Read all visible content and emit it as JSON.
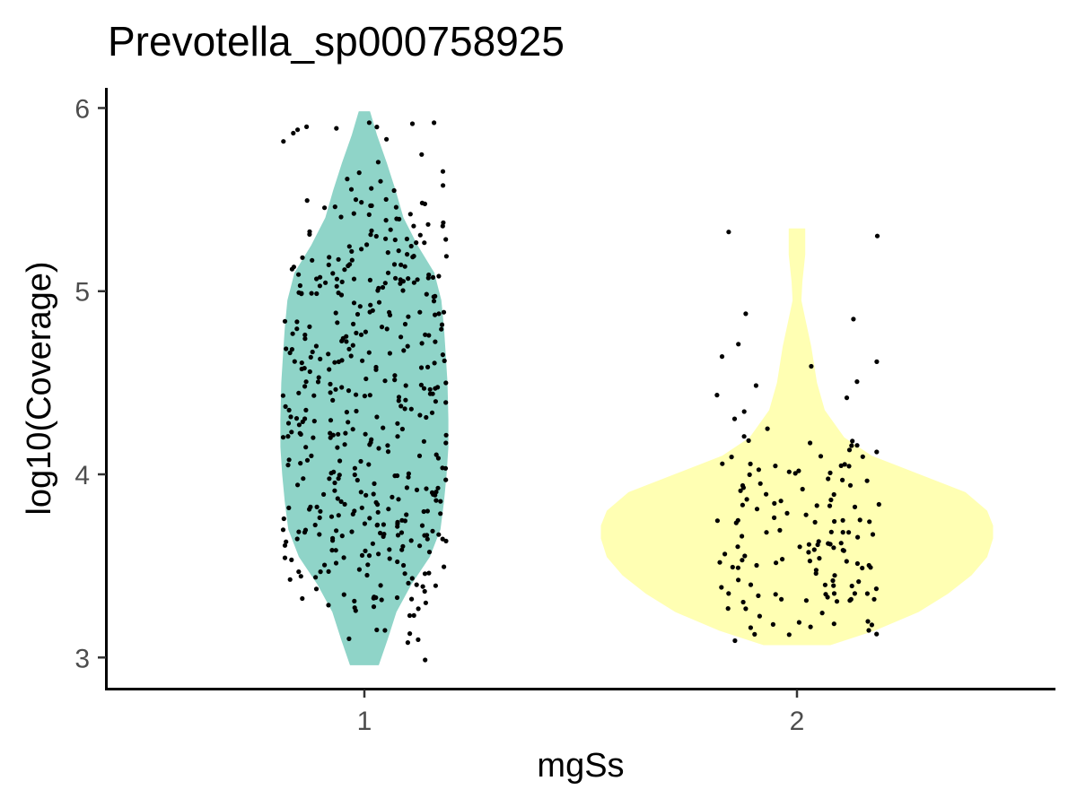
{
  "chart_data": {
    "type": "violin",
    "title": "Prevotella_sp000758925",
    "xlabel": "mgSs",
    "ylabel": "log10(Coverage)",
    "ylim": [
      2.83,
      6.11
    ],
    "yticks": [
      3,
      4,
      5,
      6
    ],
    "categories": [
      "1",
      "2"
    ],
    "grid": false,
    "legend": "none",
    "colors": {
      "1": "#8FD4C8",
      "2": "#FFFFB3",
      "points": "#000000"
    },
    "groups": [
      {
        "name": "1",
        "count": 450,
        "min": 2.96,
        "max": 5.98,
        "density_profile": [
          [
            2.96,
            0.16
          ],
          [
            3.1,
            0.26
          ],
          [
            3.25,
            0.36
          ],
          [
            3.4,
            0.53
          ],
          [
            3.55,
            0.74
          ],
          [
            3.7,
            0.86
          ],
          [
            3.85,
            0.9
          ],
          [
            4.0,
            0.93
          ],
          [
            4.15,
            0.95
          ],
          [
            4.3,
            0.95
          ],
          [
            4.5,
            0.94
          ],
          [
            4.65,
            0.92
          ],
          [
            4.8,
            0.9
          ],
          [
            4.95,
            0.87
          ],
          [
            5.1,
            0.79
          ],
          [
            5.25,
            0.6
          ],
          [
            5.4,
            0.44
          ],
          [
            5.55,
            0.35
          ],
          [
            5.7,
            0.25
          ],
          [
            5.85,
            0.14
          ],
          [
            5.98,
            0.06
          ]
        ]
      },
      {
        "name": "2",
        "count": 150,
        "min": 3.07,
        "max": 5.34,
        "density_profile": [
          [
            3.07,
            0.17
          ],
          [
            3.15,
            0.4
          ],
          [
            3.25,
            0.62
          ],
          [
            3.35,
            0.77
          ],
          [
            3.45,
            0.89
          ],
          [
            3.55,
            0.97
          ],
          [
            3.65,
            1.0
          ],
          [
            3.72,
            1.0
          ],
          [
            3.8,
            0.97
          ],
          [
            3.9,
            0.86
          ],
          [
            4.0,
            0.62
          ],
          [
            4.1,
            0.38
          ],
          [
            4.2,
            0.24
          ],
          [
            4.35,
            0.14
          ],
          [
            4.5,
            0.1
          ],
          [
            4.7,
            0.07
          ],
          [
            4.85,
            0.04
          ],
          [
            4.95,
            0.02
          ],
          [
            5.05,
            0.025
          ],
          [
            5.2,
            0.04
          ],
          [
            5.34,
            0.04
          ]
        ]
      }
    ]
  }
}
